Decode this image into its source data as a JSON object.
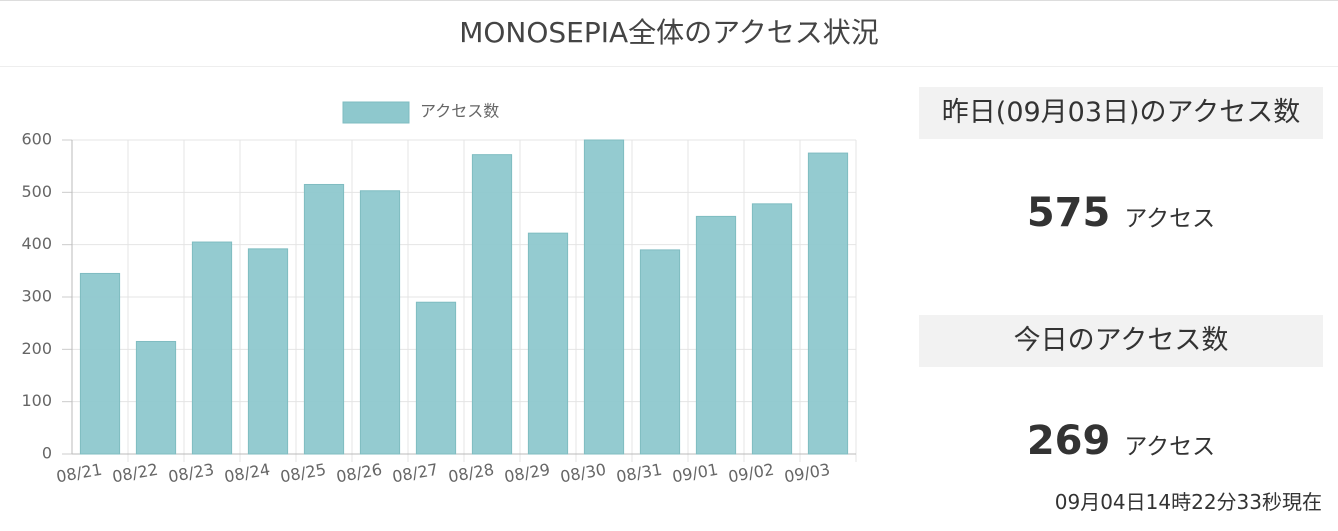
{
  "header": {
    "title": "MONOSEPIA全体のアクセス状況"
  },
  "chart_data": {
    "type": "bar",
    "categories": [
      "08/21",
      "08/22",
      "08/23",
      "08/24",
      "08/25",
      "08/26",
      "08/27",
      "08/28",
      "08/29",
      "08/30",
      "08/31",
      "09/01",
      "09/02",
      "09/03"
    ],
    "series": [
      {
        "name": "アクセス数",
        "color": "#8ec8cd",
        "values": [
          345,
          215,
          405,
          392,
          515,
          503,
          290,
          572,
          422,
          600,
          390,
          454,
          478,
          575
        ]
      }
    ],
    "ylim": [
      0,
      600
    ],
    "yticks": [
      0,
      100,
      200,
      300,
      400,
      500,
      600
    ],
    "grid": true,
    "legend": "top"
  },
  "stats": {
    "yesterday": {
      "label": "昨日(09月03日)のアクセス数",
      "value": "575",
      "unit": "アクセス"
    },
    "today": {
      "label": "今日のアクセス数",
      "value": "269",
      "unit": "アクセス"
    },
    "timestamp": "09月04日14時22分33秒現在"
  }
}
